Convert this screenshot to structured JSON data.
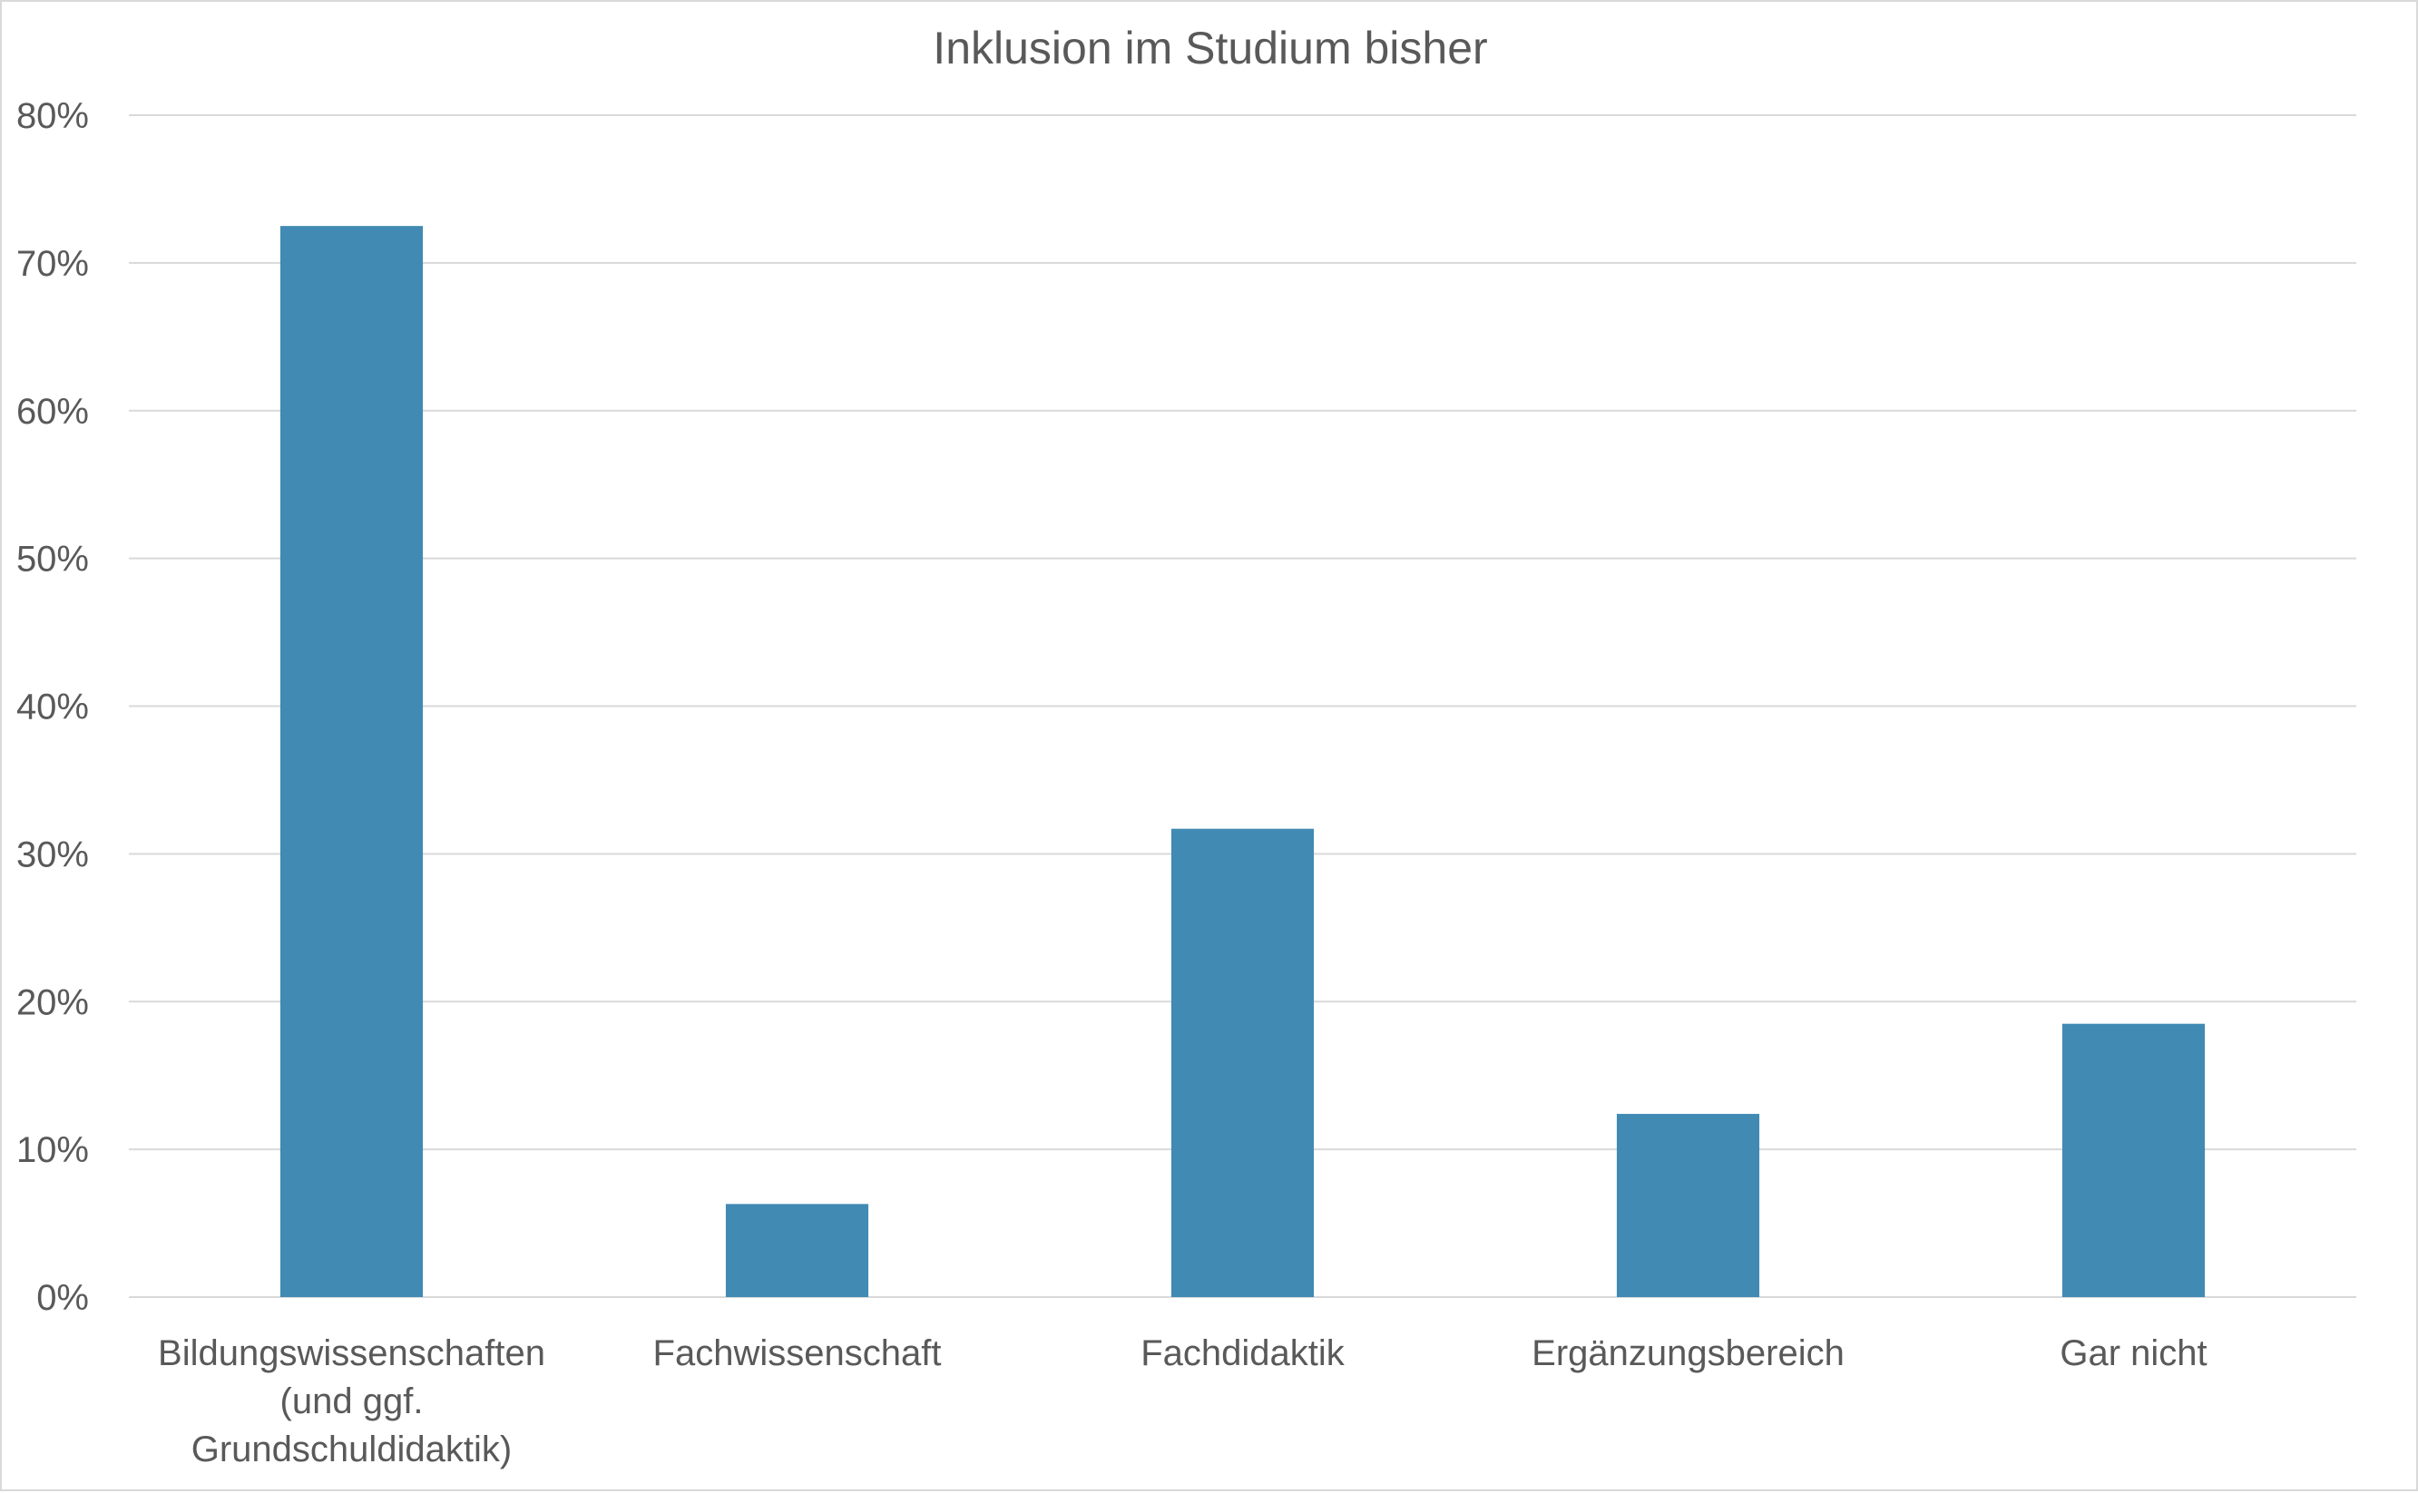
{
  "chart_data": {
    "type": "bar",
    "title": "Inklusion im Studium bisher",
    "xlabel": "",
    "ylabel": "",
    "ylim": [
      0,
      80
    ],
    "y_ticks": [
      "0%",
      "10%",
      "20%",
      "30%",
      "40%",
      "50%",
      "60%",
      "70%",
      "80%"
    ],
    "grid": true,
    "legend": "none",
    "categories": [
      [
        "Bildungswissenschaften",
        "(und ggf.",
        "Grundschuldidaktik)"
      ],
      [
        "Fachwissenschaft"
      ],
      [
        "Fachdidaktik"
      ],
      [
        "Ergänzungsbereich"
      ],
      [
        "Gar nicht"
      ]
    ],
    "values": [
      72.5,
      6.3,
      31.7,
      12.4,
      18.5
    ],
    "colors": {
      "bar": "#418ab3",
      "grid": "#d9d9d9",
      "text": "#595959"
    }
  }
}
